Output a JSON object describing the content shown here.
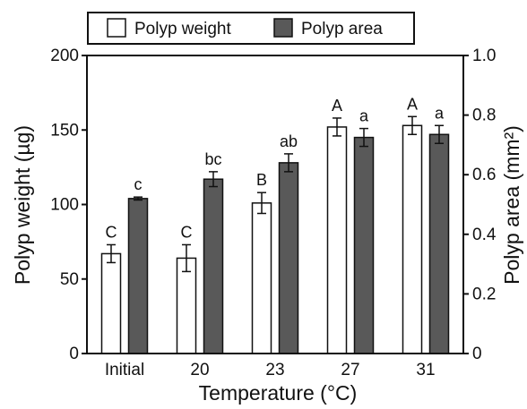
{
  "chart_data": {
    "type": "bar",
    "categories": [
      "Initial",
      "20",
      "23",
      "27",
      "31"
    ],
    "xlabel": "Temperature (°C)",
    "ylabel_left": "Polyp weight (µg)",
    "ylabel_right": "Polyp area (mm²)",
    "ylim_left": [
      0,
      200
    ],
    "ylim_right": [
      0,
      1.0
    ],
    "yticks_left": [
      "0",
      "50",
      "100",
      "150",
      "200"
    ],
    "yticks_right": [
      "0",
      "0.2",
      "0.4",
      "0.6",
      "0.8",
      "1.0"
    ],
    "legend_position": "top",
    "grid": false,
    "series": [
      {
        "name": "Polyp weight",
        "axis": "left",
        "color": "#ffffff",
        "values": [
          67,
          64,
          101,
          152,
          153
        ],
        "errors": [
          6,
          9,
          7,
          6,
          6
        ],
        "labels": [
          "C",
          "C",
          "B",
          "A",
          "A"
        ]
      },
      {
        "name": "Polyp area",
        "axis": "right",
        "color": "#595959",
        "values": [
          0.52,
          0.585,
          0.64,
          0.725,
          0.735
        ],
        "errors": [
          0.005,
          0.025,
          0.03,
          0.03,
          0.03
        ],
        "labels": [
          "c",
          "bc",
          "ab",
          "a",
          "a"
        ]
      }
    ]
  }
}
